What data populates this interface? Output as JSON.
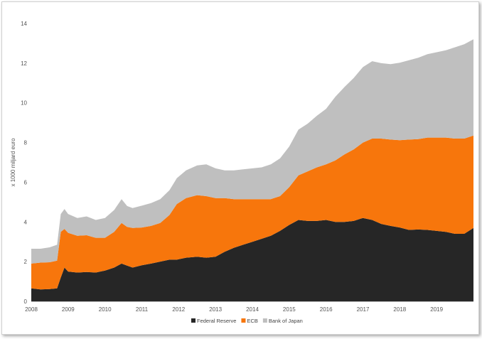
{
  "chart_data": {
    "type": "area",
    "stacked": true,
    "ylabel": "x 1000 miljard euro",
    "xlabel": "",
    "title": "",
    "ylim": [
      0,
      14
    ],
    "yticks": [
      0,
      2,
      4,
      6,
      8,
      10,
      12,
      14
    ],
    "xlim": [
      2008.0,
      2020.0
    ],
    "xticks": [
      "2008",
      "2009",
      "2010",
      "2011",
      "2012",
      "2013",
      "2014",
      "2015",
      "2016",
      "2017",
      "2018",
      "2019"
    ],
    "legend_position": "bottom",
    "colors": {
      "fed": "#262626",
      "ecb": "#f7760c",
      "boj": "#bfbfbf"
    },
    "x": [
      2008.0,
      2008.25,
      2008.5,
      2008.7,
      2008.8,
      2008.9,
      2009.0,
      2009.25,
      2009.5,
      2009.75,
      2010.0,
      2010.25,
      2010.45,
      2010.6,
      2010.75,
      2011.0,
      2011.25,
      2011.5,
      2011.75,
      2011.95,
      2012.2,
      2012.5,
      2012.75,
      2013.0,
      2013.25,
      2013.5,
      2013.75,
      2014.0,
      2014.25,
      2014.5,
      2014.75,
      2015.0,
      2015.25,
      2015.5,
      2015.75,
      2016.0,
      2016.25,
      2016.5,
      2016.75,
      2017.0,
      2017.25,
      2017.5,
      2017.75,
      2018.0,
      2018.25,
      2018.5,
      2018.75,
      2019.0,
      2019.25,
      2019.5,
      2019.75,
      2020.0
    ],
    "series": [
      {
        "name": "Federal Reserve",
        "values": [
          0.65,
          0.6,
          0.62,
          0.65,
          1.2,
          1.7,
          1.5,
          1.45,
          1.48,
          1.45,
          1.55,
          1.7,
          1.9,
          1.8,
          1.7,
          1.82,
          1.9,
          2.0,
          2.1,
          2.1,
          2.2,
          2.25,
          2.2,
          2.25,
          2.5,
          2.7,
          2.85,
          3.0,
          3.15,
          3.3,
          3.55,
          3.85,
          4.1,
          4.05,
          4.05,
          4.1,
          4.0,
          4.0,
          4.05,
          4.2,
          4.1,
          3.9,
          3.8,
          3.72,
          3.6,
          3.62,
          3.6,
          3.55,
          3.5,
          3.4,
          3.4,
          3.7
        ]
      },
      {
        "name": "ECB",
        "values": [
          1.25,
          1.35,
          1.35,
          1.4,
          2.3,
          1.95,
          1.95,
          1.85,
          1.85,
          1.75,
          1.65,
          1.8,
          2.05,
          1.95,
          2.0,
          1.9,
          1.9,
          1.95,
          2.25,
          2.8,
          3.0,
          3.1,
          3.1,
          2.95,
          2.7,
          2.45,
          2.3,
          2.15,
          2.0,
          1.85,
          1.75,
          1.9,
          2.25,
          2.5,
          2.7,
          2.8,
          3.1,
          3.4,
          3.6,
          3.8,
          4.1,
          4.3,
          4.35,
          4.4,
          4.55,
          4.55,
          4.65,
          4.7,
          4.75,
          4.8,
          4.8,
          4.65
        ]
      },
      {
        "name": "Bank of Japan",
        "values": [
          0.75,
          0.7,
          0.75,
          0.8,
          0.9,
          1.0,
          0.95,
          0.9,
          0.95,
          0.9,
          1.0,
          1.1,
          1.2,
          1.05,
          1.0,
          1.1,
          1.15,
          1.2,
          1.25,
          1.3,
          1.4,
          1.5,
          1.6,
          1.5,
          1.4,
          1.45,
          1.5,
          1.55,
          1.6,
          1.75,
          1.9,
          2.05,
          2.3,
          2.4,
          2.6,
          2.8,
          3.2,
          3.4,
          3.6,
          3.8,
          3.9,
          3.8,
          3.8,
          3.9,
          4.0,
          4.1,
          4.2,
          4.3,
          4.4,
          4.6,
          4.75,
          4.85
        ]
      }
    ]
  }
}
